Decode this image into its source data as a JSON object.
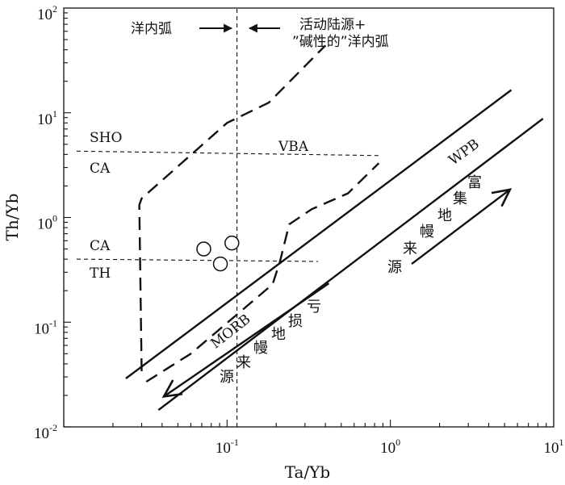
{
  "chart_data": {
    "type": "scatter",
    "xlabel": "Ta/Yb",
    "ylabel": "Th/Yb",
    "xscale": "log",
    "yscale": "log",
    "xlim": [
      0.01,
      10
    ],
    "ylim": [
      0.01,
      100
    ],
    "xticks": [
      {
        "base": "10",
        "exp": "-1",
        "value": 0.1
      },
      {
        "base": "10",
        "exp": "0",
        "value": 1
      },
      {
        "base": "10",
        "exp": "1",
        "value": 10
      }
    ],
    "yticks": [
      {
        "base": "10",
        "exp": "-2",
        "value": 0.01
      },
      {
        "base": "10",
        "exp": "-1",
        "value": 0.1
      },
      {
        "base": "10",
        "exp": "0",
        "value": 1
      },
      {
        "base": "10",
        "exp": "1",
        "value": 10
      },
      {
        "base": "10",
        "exp": "2",
        "value": 100
      }
    ],
    "points": [
      {
        "x": 0.072,
        "y": 0.5
      },
      {
        "x": 0.107,
        "y": 0.57
      },
      {
        "x": 0.091,
        "y": 0.36
      }
    ],
    "mantle_array": {
      "upper": [
        [
          0.024,
          0.029
        ],
        [
          5.5,
          16.5
        ]
      ],
      "lower": [
        [
          0.038,
          0.0145
        ],
        [
          8.6,
          8.8
        ]
      ]
    },
    "divider_lines": [
      {
        "points": [
          [
            0.012,
            4.3
          ],
          [
            0.88,
            3.9
          ]
        ]
      },
      {
        "points": [
          [
            0.012,
            0.4
          ],
          [
            0.36,
            0.38
          ]
        ]
      },
      {
        "points": [
          [
            0.115,
            0.01
          ],
          [
            0.115,
            100
          ]
        ]
      }
    ],
    "dashed_boundaries": [
      {
        "points": [
          [
            0.03,
            0.034
          ],
          [
            0.029,
            1.32
          ],
          [
            0.03,
            1.52
          ],
          [
            0.1,
            8.0
          ],
          [
            0.18,
            12.5
          ],
          [
            0.4,
            44
          ]
        ]
      },
      {
        "points": [
          [
            0.032,
            0.027
          ],
          [
            0.06,
            0.05
          ],
          [
            0.19,
            0.23
          ],
          [
            0.21,
            0.37
          ],
          [
            0.24,
            0.86
          ],
          [
            0.33,
            1.2
          ],
          [
            0.55,
            1.7
          ],
          [
            0.85,
            3.3
          ]
        ]
      }
    ],
    "trend_arrows": [
      {
        "from": [
          1.35,
          0.36
        ],
        "to": [
          5.4,
          1.85
        ]
      },
      {
        "from": [
          0.42,
          0.235
        ],
        "to": [
          0.041,
          0.0195
        ]
      }
    ],
    "annotations": {
      "sho": "SHO",
      "ca_upper": "CA",
      "vba": "VBA",
      "ca_lower": "CA",
      "th": "TH",
      "wpb": "WPB",
      "morb": "MORB",
      "oceanic_arc": "洋内弧",
      "continental_arc_1": "活动陆源+",
      "continental_arc_2": "”碱性的”洋内弧",
      "enriched_source": [
        "源",
        "来",
        "幔",
        "地",
        "集",
        "富"
      ],
      "depleted_source": [
        "源",
        "来",
        "幔",
        "地",
        "损",
        "亏"
      ]
    }
  }
}
